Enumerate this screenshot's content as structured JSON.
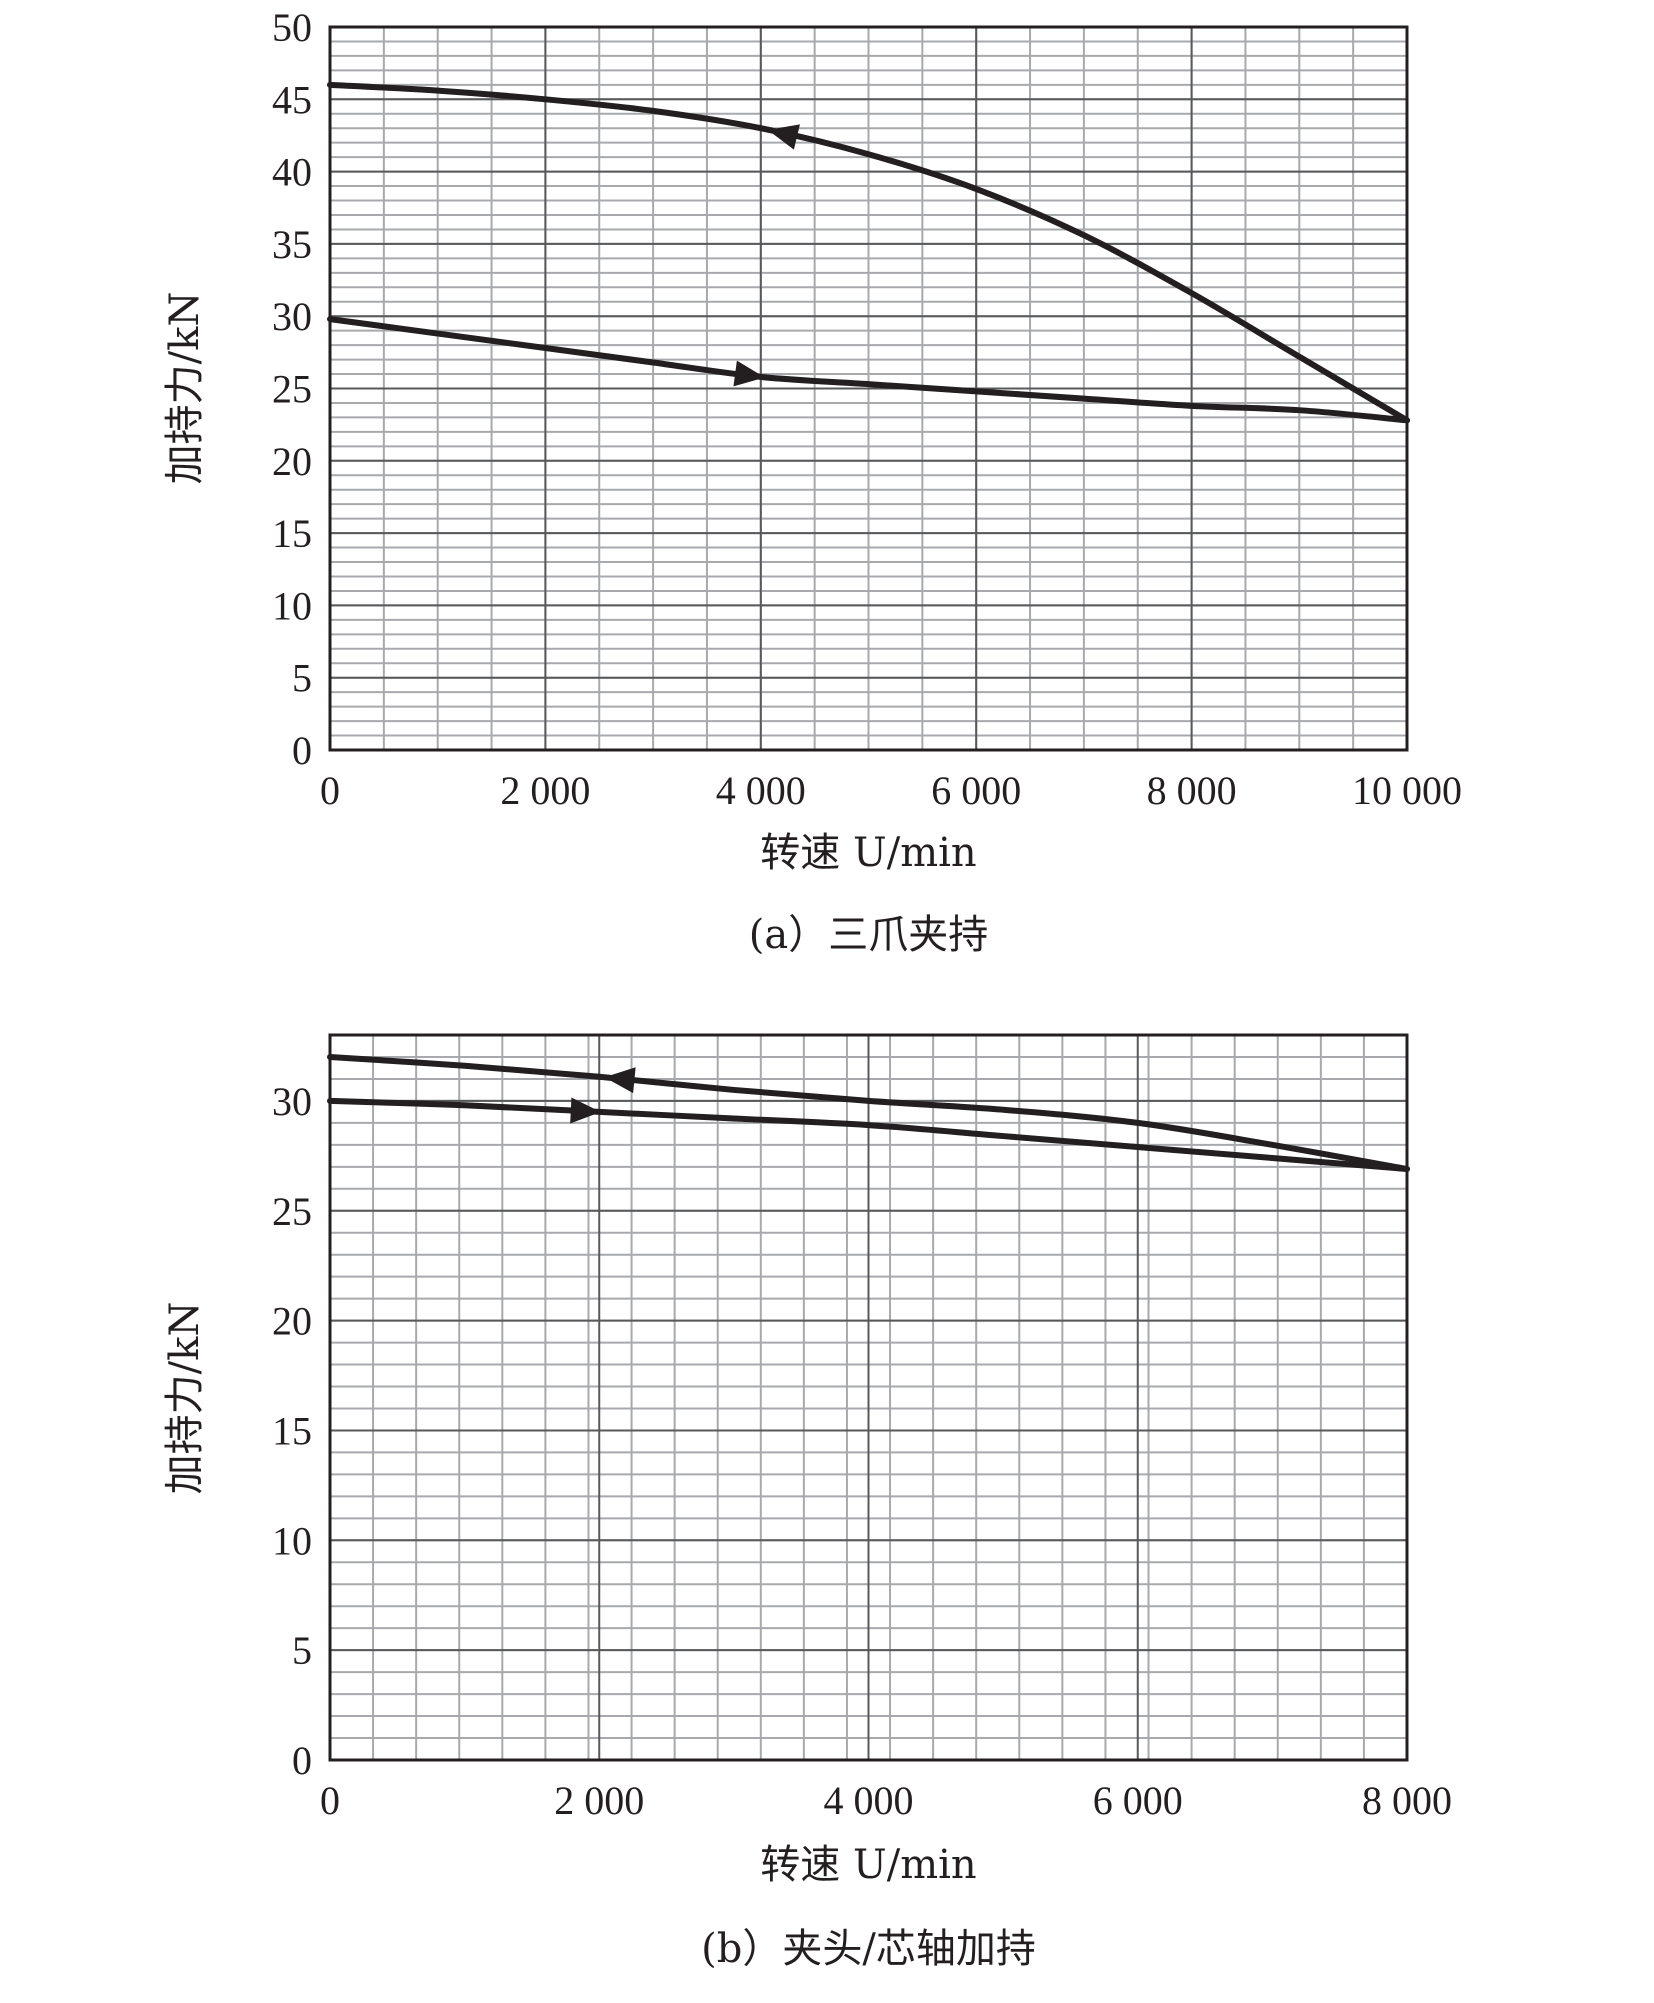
{
  "chart_data": [
    {
      "type": "line",
      "caption": "(a）三爪夹持",
      "xlabel": "转速 U/min",
      "ylabel": "加持力/kN",
      "xlim": [
        0,
        10000
      ],
      "ylim": [
        0,
        50
      ],
      "x_ticks": [
        0,
        2000,
        4000,
        6000,
        8000,
        10000
      ],
      "x_tick_labels": [
        "0",
        "2 000",
        "4 000",
        "6 000",
        "8 000",
        "10 000"
      ],
      "y_ticks": [
        0,
        5,
        10,
        15,
        20,
        25,
        30,
        35,
        40,
        45,
        50
      ],
      "y_tick_labels": [
        "0",
        "5",
        "10",
        "15",
        "20",
        "25",
        "30",
        "35",
        "40",
        "45",
        "50"
      ],
      "grid": true,
      "series": [
        {
          "direction": "increasing",
          "arrow_at": 3900,
          "x": [
            0,
            1000,
            2000,
            3000,
            4000,
            5000,
            6000,
            7000,
            8000,
            9000,
            10000
          ],
          "y": [
            29.8,
            28.8,
            27.8,
            26.8,
            25.8,
            25.3,
            24.8,
            24.3,
            23.8,
            23.5,
            22.8
          ]
        },
        {
          "direction": "decreasing",
          "arrow_at": 4200,
          "x": [
            0,
            1000,
            2000,
            3000,
            4000,
            5000,
            6000,
            7000,
            8000,
            9000,
            10000
          ],
          "y": [
            46.0,
            45.6,
            45.0,
            44.2,
            43.0,
            41.2,
            38.8,
            35.6,
            31.6,
            27.2,
            22.8
          ]
        }
      ]
    },
    {
      "type": "line",
      "caption": "(b）夹头/芯轴加持",
      "xlabel": "转速 U/min",
      "ylabel": "加持力/kN",
      "xlim": [
        0,
        8000
      ],
      "ylim": [
        0,
        33
      ],
      "x_ticks": [
        0,
        2000,
        4000,
        6000,
        8000
      ],
      "x_tick_labels": [
        "0",
        "2 000",
        "4 000",
        "6 000",
        "8 000"
      ],
      "y_ticks": [
        0,
        5,
        10,
        15,
        20,
        25,
        30
      ],
      "y_tick_labels": [
        "0",
        "5",
        "10",
        "15",
        "20",
        "25",
        "30"
      ],
      "grid": true,
      "series": [
        {
          "direction": "increasing",
          "arrow_at": 1900,
          "x": [
            0,
            1000,
            2000,
            3000,
            4000,
            5000,
            6000,
            7000,
            8000
          ],
          "y": [
            30.0,
            29.8,
            29.5,
            29.2,
            28.9,
            28.4,
            27.9,
            27.4,
            26.9
          ]
        },
        {
          "direction": "decreasing",
          "arrow_at": 2150,
          "x": [
            0,
            1000,
            2000,
            3000,
            4000,
            5000,
            6000,
            7000,
            8000
          ],
          "y": [
            32.0,
            31.6,
            31.1,
            30.5,
            30.0,
            29.6,
            29.0,
            28.0,
            26.9
          ]
        }
      ]
    }
  ]
}
